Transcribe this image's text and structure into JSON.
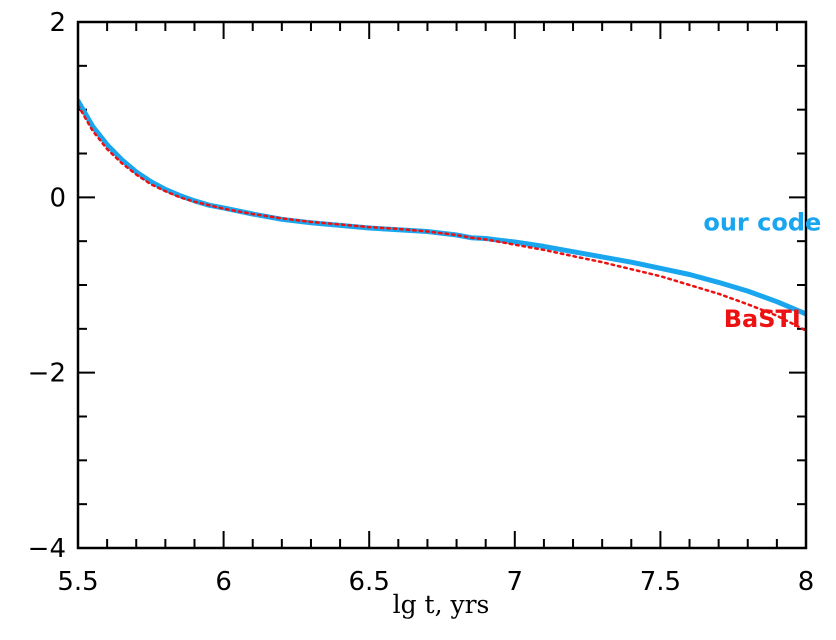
{
  "chart_data": {
    "type": "line",
    "title": "",
    "xlabel": "lg  t,  yrs",
    "ylabel": "",
    "xlim": [
      5.5,
      8
    ],
    "ylim": [
      -4,
      2
    ],
    "x_ticks": [
      5.5,
      6,
      6.5,
      7,
      7.5,
      8
    ],
    "x_tick_labels": [
      "5.5",
      "6",
      "6.5",
      "7",
      "7.5",
      "8"
    ],
    "y_ticks": [
      -4,
      -2,
      0,
      2
    ],
    "y_tick_labels": [
      "−4",
      "−2",
      "0",
      "2"
    ],
    "x_minor_step": 0.1,
    "y_minor_step": 0.5,
    "grid": false,
    "series": [
      {
        "name": "our code",
        "color": "#1aa6ee",
        "style": "solid",
        "x": [
          5.5,
          5.55,
          5.6,
          5.65,
          5.7,
          5.75,
          5.8,
          5.85,
          5.9,
          5.95,
          6.0,
          6.1,
          6.2,
          6.3,
          6.4,
          6.5,
          6.6,
          6.7,
          6.8,
          6.85,
          6.9,
          6.95,
          7.0,
          7.1,
          7.2,
          7.3,
          7.4,
          7.5,
          7.6,
          7.7,
          7.8,
          7.9,
          8.0
        ],
        "y": [
          1.1,
          0.81,
          0.6,
          0.43,
          0.29,
          0.18,
          0.09,
          0.02,
          -0.04,
          -0.09,
          -0.12,
          -0.19,
          -0.25,
          -0.29,
          -0.32,
          -0.35,
          -0.37,
          -0.39,
          -0.43,
          -0.46,
          -0.47,
          -0.49,
          -0.51,
          -0.56,
          -0.62,
          -0.68,
          -0.74,
          -0.81,
          -0.88,
          -0.97,
          -1.07,
          -1.19,
          -1.33
        ]
      },
      {
        "name": "BaSTI",
        "color": "#ee1111",
        "style": "dotted",
        "x": [
          5.5,
          5.55,
          5.6,
          5.65,
          5.7,
          5.75,
          5.8,
          5.85,
          5.9,
          5.95,
          6.0,
          6.1,
          6.2,
          6.3,
          6.4,
          6.5,
          6.6,
          6.7,
          6.8,
          6.85,
          6.9,
          6.95,
          7.0,
          7.1,
          7.2,
          7.3,
          7.4,
          7.5,
          7.6,
          7.7,
          7.8,
          7.9,
          8.0
        ],
        "y": [
          1.05,
          0.76,
          0.55,
          0.39,
          0.26,
          0.15,
          0.07,
          0.0,
          -0.05,
          -0.09,
          -0.13,
          -0.19,
          -0.24,
          -0.28,
          -0.31,
          -0.34,
          -0.36,
          -0.39,
          -0.43,
          -0.46,
          -0.48,
          -0.51,
          -0.54,
          -0.6,
          -0.67,
          -0.74,
          -0.82,
          -0.9,
          -1.0,
          -1.1,
          -1.22,
          -1.35,
          -1.52
        ]
      }
    ],
    "labels": [
      {
        "text": "our code",
        "color": "#1aa6ee",
        "x": 7.85,
        "y": -0.38
      },
      {
        "text": "BaSTI",
        "color": "#ee1111",
        "x": 7.85,
        "y": -1.48
      }
    ]
  }
}
